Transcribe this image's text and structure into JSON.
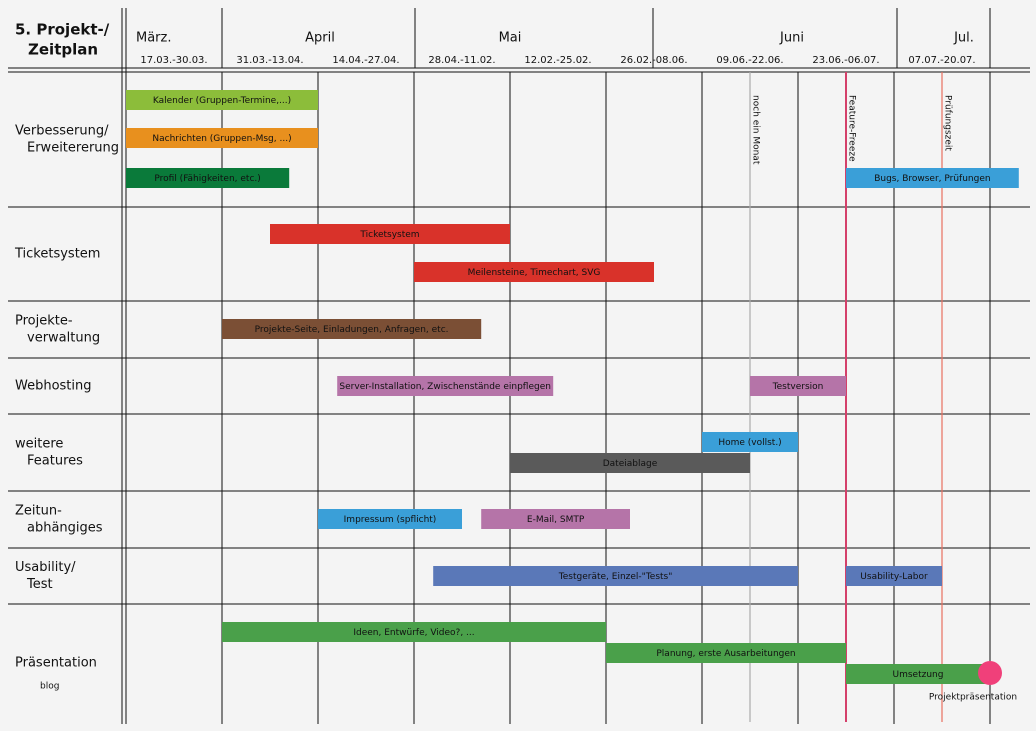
{
  "chart_data": {
    "type": "gantt",
    "title": [
      "5. Projekt-/",
      "Zeitplan"
    ],
    "months": [
      "März.",
      "April",
      "Mai",
      "Juni",
      "Jul."
    ],
    "periods": [
      "17.03.-30.03.",
      "31.03.-13.04.",
      "14.04.-27.04.",
      "28.04.-11.02.",
      "12.02.-25.02.",
      "26.02.-08.06.",
      "09.06.-22.06.",
      "23.06.-06.07.",
      "07.07.-20.07."
    ],
    "rows": [
      {
        "label": [
          "Verbesserung/",
          "Erweitererung"
        ],
        "tasks": [
          {
            "name": "Kalender (Gruppen-Termine,...)",
            "start": 0,
            "end": 2,
            "lane": 0,
            "color": "#8cbd3a"
          },
          {
            "name": "Nachrichten (Gruppen-Msg, ...)",
            "start": 0,
            "end": 2,
            "lane": 1,
            "color": "#e8901e"
          },
          {
            "name": "Profil (Fähigkeiten, etc.)",
            "start": 0,
            "end": 1.7,
            "lane": 2,
            "color": "#0a7a3a"
          },
          {
            "name": "Bugs, Browser, Prüfungen",
            "start": 7.5,
            "end": 9.3,
            "lane": 2,
            "color": "#3a9fd8"
          }
        ]
      },
      {
        "label": [
          "Ticketsystem"
        ],
        "tasks": [
          {
            "name": "Ticketsystem",
            "start": 1.5,
            "end": 4,
            "lane": 0,
            "color": "#d9322a"
          },
          {
            "name": "Meilensteine, Timechart, SVG",
            "start": 3,
            "end": 5.5,
            "lane": 1,
            "color": "#d9322a"
          }
        ]
      },
      {
        "label": [
          "Projekte-",
          "verwaltung"
        ],
        "tasks": [
          {
            "name": "Projekte-Seite, Einladungen, Anfragen, etc.",
            "start": 1,
            "end": 3.7,
            "lane": 0,
            "color": "#7b4f35"
          }
        ]
      },
      {
        "label": [
          "Webhosting"
        ],
        "tasks": [
          {
            "name": "Server-Installation, Zwischenstände einpflegen",
            "start": 2.2,
            "end": 4.45,
            "lane": 0,
            "color": "#b574a8"
          },
          {
            "name": "Testversion",
            "start": 6.5,
            "end": 7.5,
            "lane": 0,
            "color": "#b574a8"
          }
        ]
      },
      {
        "label": [
          "weitere",
          "Features"
        ],
        "tasks": [
          {
            "name": "Home (vollst.)",
            "start": 6,
            "end": 7,
            "lane": 0,
            "color": "#3a9fd8"
          },
          {
            "name": "Dateiablage",
            "start": 4,
            "end": 6.5,
            "lane": 1,
            "color": "#5a5a5a"
          }
        ]
      },
      {
        "label": [
          "Zeitun-",
          "abhängiges"
        ],
        "tasks": [
          {
            "name": "Impressum (spflicht)",
            "start": 2,
            "end": 3.5,
            "lane": 0,
            "color": "#3a9fd8"
          },
          {
            "name": "E-Mail, SMTP",
            "start": 3.7,
            "end": 5.25,
            "lane": 0,
            "color": "#b574a8"
          }
        ]
      },
      {
        "label": [
          "Usability/",
          "Test"
        ],
        "tasks": [
          {
            "name": "Testgeräte, Einzel-\"Tests\"",
            "start": 3.2,
            "end": 7,
            "lane": 0,
            "color": "#5a78b8"
          },
          {
            "name": "Usability-Labor",
            "start": 7.5,
            "end": 8.5,
            "lane": 0,
            "color": "#5a78b8"
          }
        ]
      },
      {
        "label": [
          "Präsentation"
        ],
        "tasks": [
          {
            "name": "Ideen, Entwürfe, Video?, ...",
            "start": 1,
            "end": 5,
            "lane": 0,
            "color": "#4aa04a"
          },
          {
            "name": "Planung, erste Ausarbeitungen",
            "start": 5,
            "end": 7.5,
            "lane": 1,
            "color": "#4aa04a"
          },
          {
            "name": "Umsetzung",
            "start": 7.5,
            "end": 9,
            "lane": 2,
            "color": "#4aa04a"
          }
        ]
      }
    ],
    "markers": [
      {
        "name": "noch ein Monat",
        "at": 6.5,
        "color": "#aaaaaa"
      },
      {
        "name": "Feature-Freeze",
        "at": 7.5,
        "color": "#d4406a"
      },
      {
        "name": "Prüfungszeit",
        "at": 8.5,
        "color": "#e87060"
      }
    ],
    "milestone": {
      "name": "Projektpräsentation",
      "at": 9,
      "color": "#f0407a"
    },
    "watermark": "blog"
  }
}
